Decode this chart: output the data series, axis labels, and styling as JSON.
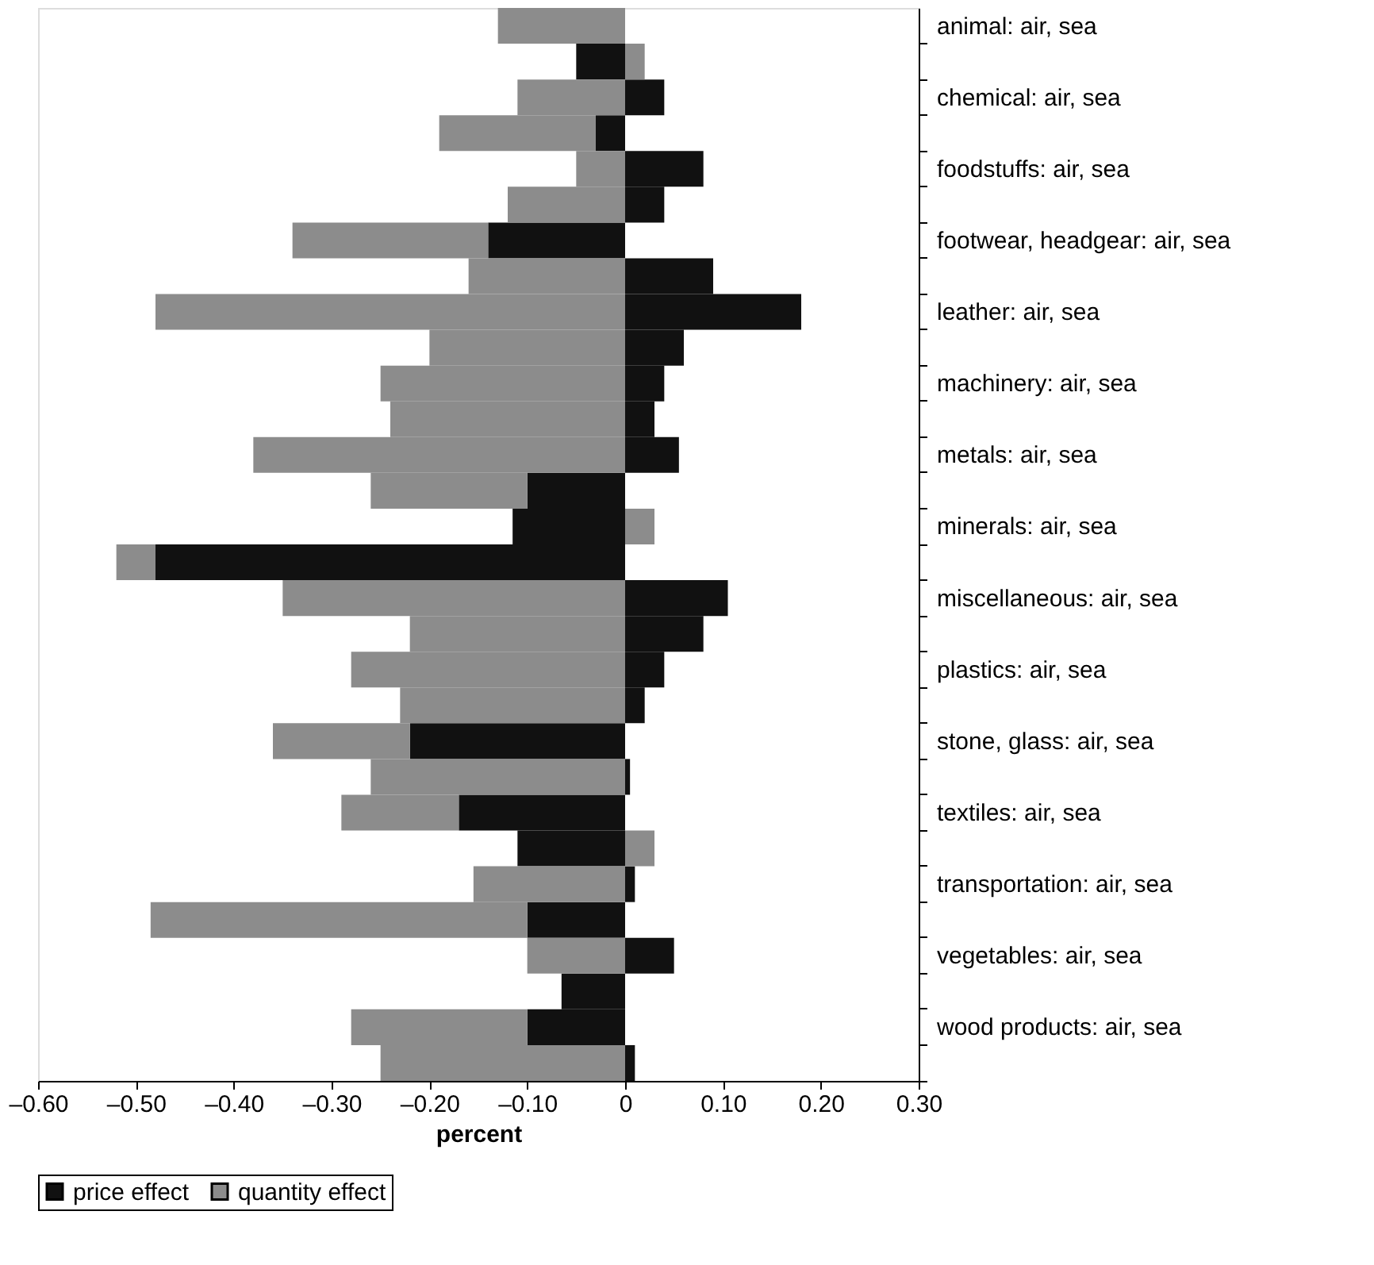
{
  "chart_data": {
    "type": "bar",
    "orientation": "horizontal",
    "stacked": true,
    "categories": [
      "animal: air, sea",
      null,
      "chemical: air, sea",
      null,
      "foodstuffs: air, sea",
      null,
      "footwear, headgear: air, sea",
      null,
      "leather: air, sea",
      null,
      "machinery: air, sea",
      null,
      "metals: air, sea",
      null,
      "minerals: air, sea",
      null,
      "miscellaneous: air, sea",
      null,
      "plastics: air, sea",
      null,
      "stone, glass: air, sea",
      null,
      "textiles: air, sea",
      null,
      "transportation: air, sea",
      null,
      "vegetables: air, sea",
      null,
      "wood products: air, sea",
      null
    ],
    "series": [
      {
        "name": "price effect",
        "color": "#111111",
        "values": [
          0,
          -0.05,
          0.04,
          -0.03,
          0.08,
          0.04,
          -0.14,
          0.09,
          0.18,
          0.06,
          0.04,
          0.03,
          0.055,
          -0.1,
          -0.115,
          -0.48,
          0.105,
          0.08,
          0.04,
          0.02,
          -0.22,
          0.005,
          -0.17,
          -0.11,
          0.01,
          -0.1,
          0.05,
          -0.065,
          -0.1,
          0.01
        ]
      },
      {
        "name": "quantity effect",
        "color": "#8c8c8c",
        "values": [
          -0.13,
          0.02,
          -0.11,
          -0.16,
          -0.05,
          -0.12,
          -0.2,
          -0.16,
          -0.48,
          -0.2,
          -0.25,
          -0.24,
          -0.38,
          -0.16,
          0.03,
          -0.04,
          -0.35,
          -0.22,
          -0.28,
          -0.23,
          -0.14,
          -0.26,
          -0.12,
          0.03,
          -0.155,
          -0.385,
          -0.1,
          0,
          -0.18,
          -0.25
        ]
      }
    ],
    "xlim": [
      -0.6,
      0.3
    ],
    "xticks": [
      {
        "value": -0.6,
        "label": "–0.60"
      },
      {
        "value": -0.5,
        "label": "–0.50"
      },
      {
        "value": -0.4,
        "label": "–0.40"
      },
      {
        "value": -0.3,
        "label": "–0.30"
      },
      {
        "value": -0.2,
        "label": "–0.20"
      },
      {
        "value": -0.1,
        "label": "–0.10"
      },
      0,
      {
        "value": 0.1,
        "label": "0.10"
      },
      {
        "value": 0.2,
        "label": "0.20"
      },
      {
        "value": 0.3,
        "label": "0.30"
      }
    ],
    "xlabel": "percent",
    "grid": false,
    "legend": "bottom"
  }
}
